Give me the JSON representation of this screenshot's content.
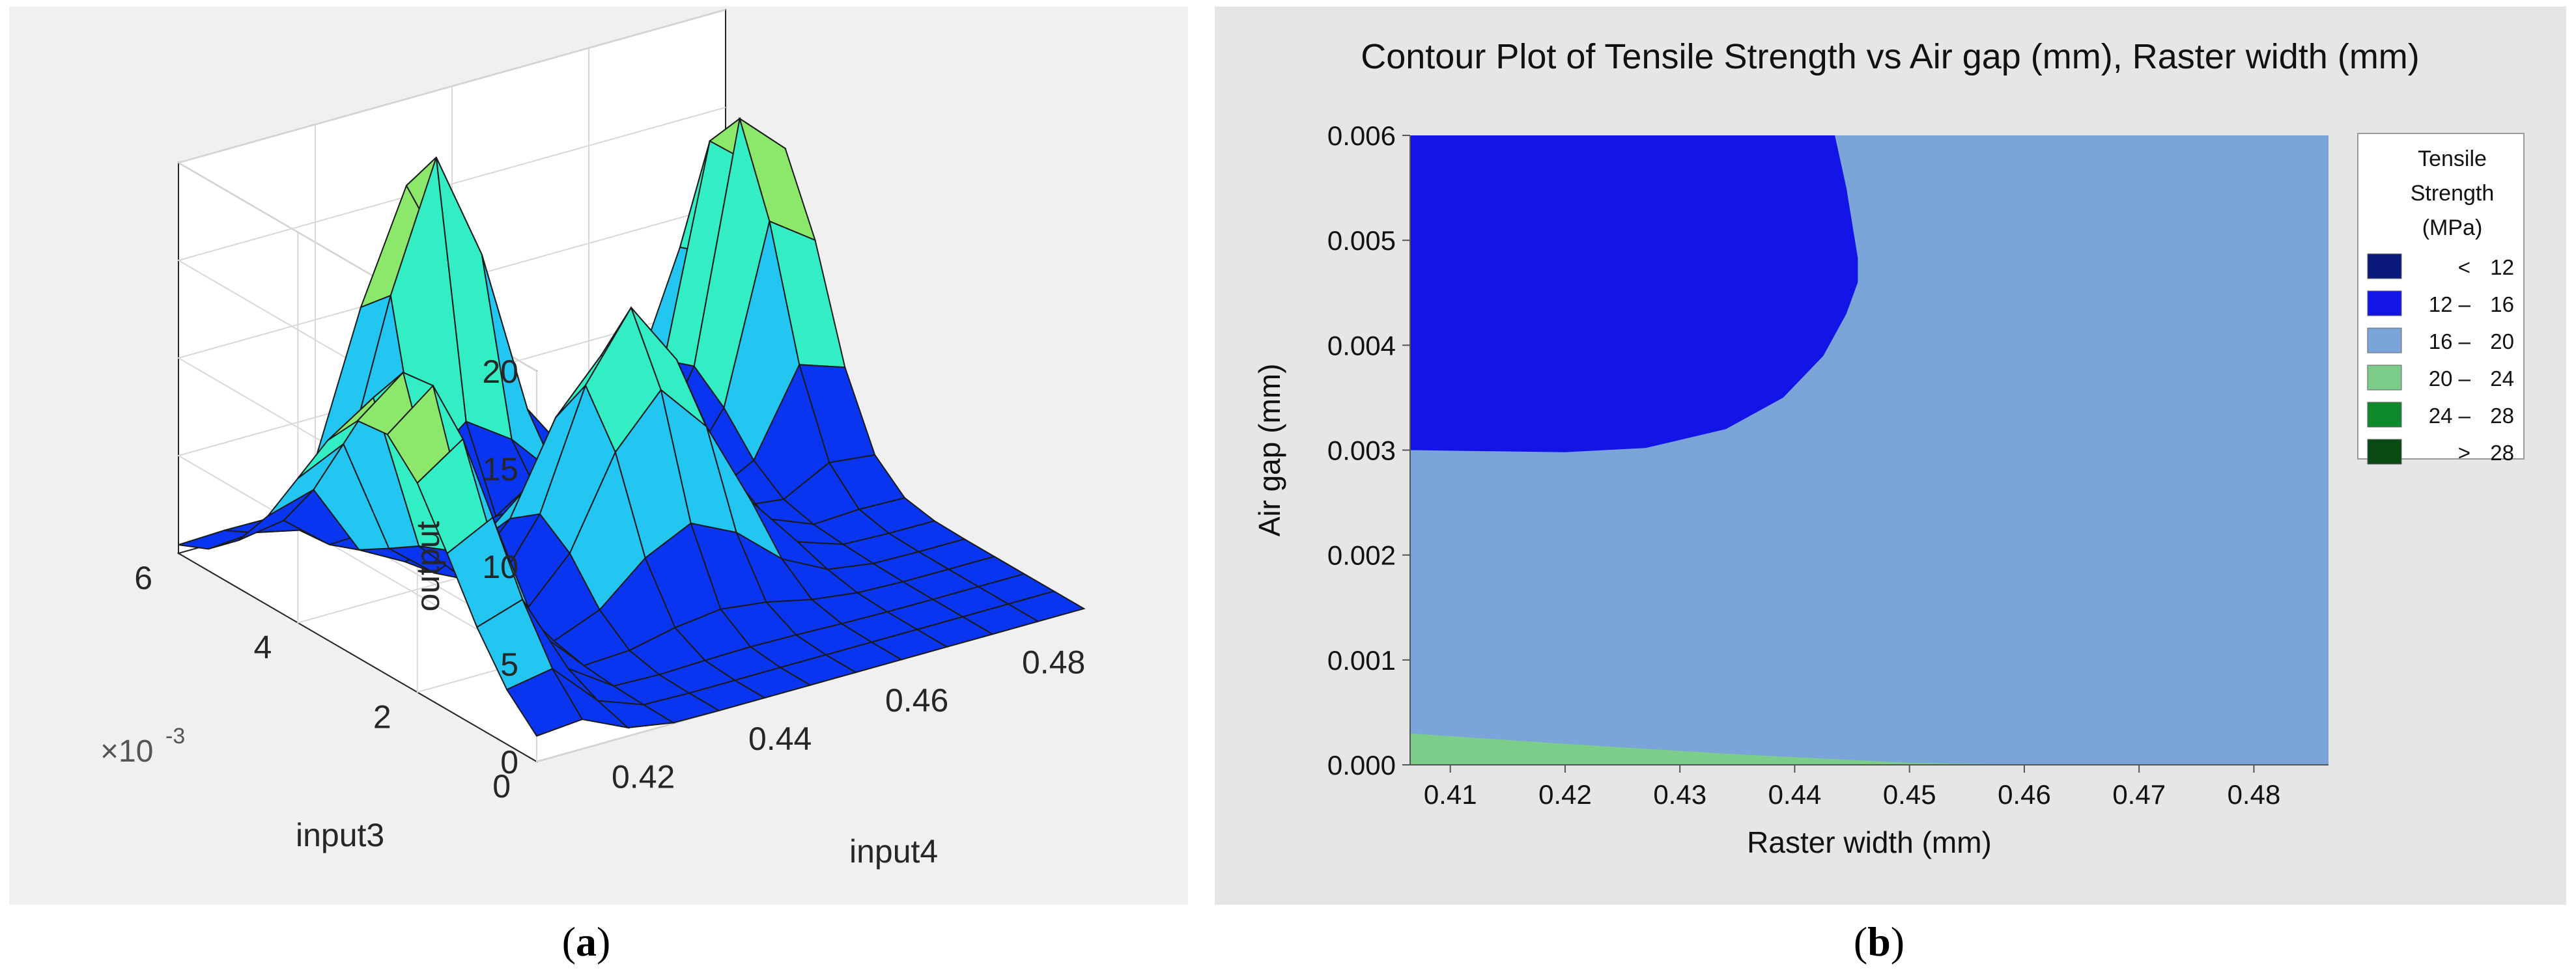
{
  "captions": {
    "a": "a",
    "b": "b"
  },
  "chart_data": [
    {
      "type": "surface3d",
      "title": "",
      "zlabel": "output",
      "xlabel": "input4",
      "ylabel": "input3",
      "y_multiplier_label": "×10",
      "y_multiplier_exp": "-3",
      "z_ticks": [
        "0",
        "5",
        "10",
        "15",
        "20"
      ],
      "y_ticks": [
        "0",
        "2",
        "4",
        "6"
      ],
      "x_ticks": [
        "0.42",
        "0.44",
        "0.46",
        "0.48"
      ],
      "zlim": [
        0,
        20
      ],
      "ylim": [
        0,
        0.006
      ],
      "xlim": [
        0.41,
        0.49
      ],
      "colormap": [
        "#0a35f0",
        "#22c6f0",
        "#33eec4",
        "#8ce86a",
        "#f5eb14"
      ]
    },
    {
      "type": "contour",
      "title": "Contour Plot of Tensile Strength vs Air gap (mm), Raster width (mm)",
      "xlabel": "Raster width (mm)",
      "ylabel": "Air gap (mm)",
      "xlim": [
        0.4065,
        0.4865
      ],
      "ylim": [
        0.0,
        0.006
      ],
      "x_ticks": [
        "0.41",
        "0.42",
        "0.43",
        "0.44",
        "0.45",
        "0.46",
        "0.47",
        "0.48"
      ],
      "y_ticks": [
        "0.000",
        "0.001",
        "0.002",
        "0.003",
        "0.004",
        "0.005",
        "0.006"
      ],
      "legend": {
        "title": [
          "Tensile",
          "Strength",
          "(MPa)"
        ],
        "entries": [
          {
            "label_lo": "<",
            "label_hi": "12",
            "color": "#0b1a7a"
          },
          {
            "label_lo": "12  –",
            "label_hi": "16",
            "color": "#1414e6"
          },
          {
            "label_lo": "16  –",
            "label_hi": "20",
            "color": "#7ba5d8"
          },
          {
            "label_lo": "20  –",
            "label_hi": "24",
            "color": "#7ccc8a"
          },
          {
            "label_lo": "24  –",
            "label_hi": "28",
            "color": "#0e8a2c"
          },
          {
            "label_lo": ">",
            "label_hi": "28",
            "color": "#0a4a14"
          }
        ]
      },
      "regions": [
        {
          "range": "12-16",
          "boundary": [
            [
              0.4065,
              0.006
            ],
            [
              0.4435,
              0.006
            ],
            [
              0.4445,
              0.0055
            ],
            [
              0.4455,
              0.00483
            ],
            [
              0.4455,
              0.0046
            ],
            [
              0.4445,
              0.0043
            ],
            [
              0.4425,
              0.0039
            ],
            [
              0.439,
              0.0035
            ],
            [
              0.434,
              0.0032
            ],
            [
              0.427,
              0.00302
            ],
            [
              0.42,
              0.00298
            ],
            [
              0.413,
              0.00299
            ],
            [
              0.4065,
              0.003
            ]
          ]
        },
        {
          "range": "20-24",
          "boundary": [
            [
              0.4065,
              0.0003
            ],
            [
              0.42,
              0.0002
            ],
            [
              0.435,
              0.0001
            ],
            [
              0.45,
              2e-05
            ],
            [
              0.46,
              0.0
            ],
            [
              0.4065,
              0.0
            ]
          ]
        }
      ]
    }
  ]
}
